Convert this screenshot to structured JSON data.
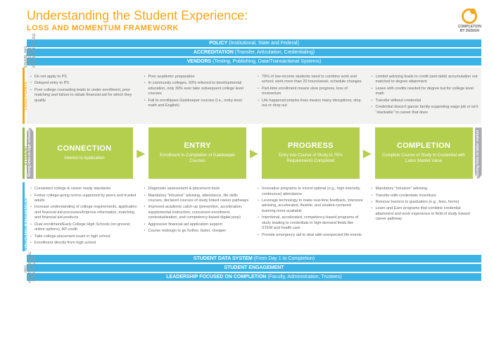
{
  "title": "Understanding the Student Experience:",
  "subtitle": "LOSS AND MOMENTUM FRAMEWORK",
  "logo": {
    "line1": "COMPLETION",
    "line2": "BY DESIGN"
  },
  "colors": {
    "orange": "#f6a61d",
    "blue": "#3bb4e5",
    "green": "#b4ce4e",
    "gray": "#aaa",
    "graybg": "#f2f2f0"
  },
  "sidelabels": {
    "enabling": "ENABLING SYSTEM\nINFRASTRUCTURE",
    "loss": "LOSS POINTS",
    "progression": "STUDENT PROGRESSION",
    "momentum": "MOMENTUM STRATEGIES",
    "institutional": "ING INSTITUTIONAL\nSTRUCTURE"
  },
  "topbars": [
    {
      "bold": "POLICY",
      "rest": " (Institutional, State and Federal)"
    },
    {
      "bold": "ACCREDITATION",
      "rest": " (Transfer, Articulation, Credentialing)"
    },
    {
      "bold": "VENDORS",
      "rest": " (Testing, Publishing, Data/Transactional Systems)"
    }
  ],
  "loss": [
    [
      "Do not apply to PS",
      "Delayed entry to PS",
      "Poor college counseling leads to under enrollment, poor matching and failure to obtain financial aid for which they qualify"
    ],
    [
      "Poor academic preparation",
      "In community colleges, 60% referred to developmental education, only 30% ever take subsequent college level courses",
      "Fail to enroll/pass Gatekeeper courses (i.e., entry-level math and English)"
    ],
    [
      "75% of low-income students need to combine work and school; work more than 20 hours/week; schedule changes",
      "Part-time enrollment means slow progress, loss of momentum",
      "Life happens/complex lives means many disruptions; stop out or drop out"
    ],
    [
      "Limited advising leads to credit (and debt) accumulation not matched to degree attainment",
      "Leave with credits needed for degree but for college level math",
      "Transfer without credential",
      "Credential doesn't garner family-supporting wage job or isn't \"stackable\" to career that does"
    ]
  ],
  "capleft": "Strong links to high schools",
  "capright": "Strong links to labor market",
  "stages": [
    {
      "name": "CONNECTION",
      "desc": "Interest to Application"
    },
    {
      "name": "ENTRY",
      "desc": "Enrollment to Completion of Gatekeeper Courses"
    },
    {
      "name": "PROGRESS",
      "desc": "Entry into Course of Study to 75% Requirements Completed"
    },
    {
      "name": "COMPLETION",
      "desc": "Complete Course of Study to Credential with Labor Market Value"
    }
  ],
  "momentum": [
    [
      "Consistent college & career ready standards",
      "Foster college-going norms supported by peers and trusted adults",
      "Increase understanding of college requirements, application and financial aid processes/Improve information, matching and financial aid products",
      "Dual enrollment/Early College High Schools (on-ground, online options), AP credit",
      "Take college placement exam in high school",
      "Enrollment directly from high school"
    ],
    [
      "Diagnostic assessment & placement tools",
      "Mandatory \"intrusive\" advising, attendance, life skills courses, declared courses of study linked career pathways",
      "Improved academic catch-up (prevention, acceleration, supplemental instruction, concurrent enrollment, contextualization, and competency-based digital prep)",
      "Aggressive financial aid application support",
      "Course redesign to go further, faster, cheaper"
    ],
    [
      "Innovative programs to incent optimal (e.g., high intensity, continuous) attendance",
      "Leverage technology to make real-time feedback, intensive advising, accelerated, flexible, and student-centered learning more available",
      "Intentional, accelerated, competency-based programs of study leading to credentials in high-demand fields like STEM and health care",
      "Provide emergency aid to deal with unexpected life events"
    ],
    [
      "Mandatory \"intrusive\" advising",
      "Transfer-with-credentials incentives",
      "Remove barriers to graduation (e.g., fees, forms)",
      "Learn and Earn programs that combine credential attainment and work experience in field of study toward career pathway"
    ]
  ],
  "bottombars": [
    {
      "bold": "STUDENT DATA SYSTEM",
      "rest": " (From Day 1 to Completion)"
    },
    {
      "bold": "STUDENT ENGAGEMENT",
      "rest": ""
    },
    {
      "bold": "LEADERSHIP FOCUSED ON COMPLETION",
      "rest": " (Faculty, Administration, Trustees)"
    }
  ]
}
